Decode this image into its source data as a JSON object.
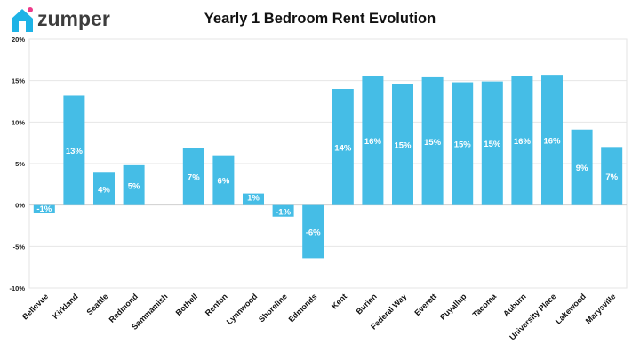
{
  "brand": {
    "name": "zumper",
    "color": "#3d3d3d",
    "icon_color": "#1eb3e6",
    "accent_dot": "#ee3a8a"
  },
  "chart_data": {
    "type": "bar",
    "title": "Yearly 1 Bedroom Rent Evolution",
    "categories": [
      "Bellevue",
      "Kirkland",
      "Seattle",
      "Redmond",
      "Sammamish",
      "Bothell",
      "Renton",
      "Lynnwood",
      "Shoreline",
      "Edmonds",
      "Kent",
      "Burien",
      "Federal Way",
      "Everett",
      "Puyallup",
      "Tacoma",
      "Auburn",
      "University Place",
      "Lakewood",
      "Marysville"
    ],
    "values": [
      -1,
      13.2,
      3.9,
      4.8,
      0,
      6.9,
      6.0,
      1.4,
      -1.4,
      -6.4,
      14.0,
      15.6,
      14.6,
      15.4,
      14.8,
      14.9,
      15.6,
      15.7,
      9.1,
      7.0
    ],
    "data_labels": [
      "-1%",
      "13%",
      "4%",
      "5%",
      "",
      "7%",
      "6%",
      "1%",
      "-1%",
      "-6%",
      "14%",
      "16%",
      "15%",
      "15%",
      "15%",
      "15%",
      "16%",
      "16%",
      "9%",
      "7%"
    ],
    "y_ticks": [
      "20%",
      "15%",
      "10%",
      "5%",
      "0%",
      "-5%",
      "-10%"
    ],
    "y_tick_values": [
      20,
      15,
      10,
      5,
      0,
      -5,
      -10
    ],
    "ylim": [
      -10,
      20
    ],
    "grid": true,
    "bar_color": "#45bde6",
    "label_color": "#ffffff"
  }
}
